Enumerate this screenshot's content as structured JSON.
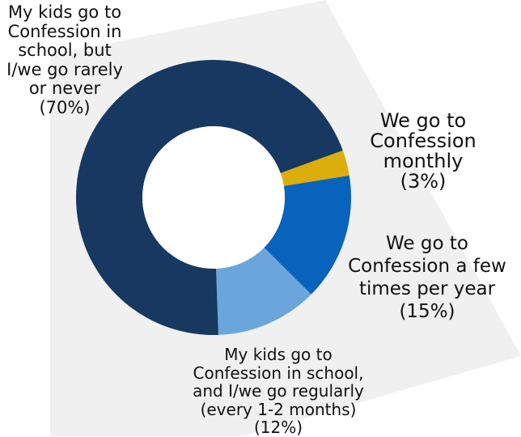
{
  "chart_data": {
    "type": "pie",
    "donut": true,
    "legend": "none",
    "slices": [
      {
        "label": "My kids go to Confession in school, but I/we go rarely or never (70%)",
        "label_lines": [
          "My kids go to",
          "Confession in",
          "school, but",
          "I/we go rarely",
          "or never",
          "(70%)"
        ],
        "value": 70,
        "color": "#173860"
      },
      {
        "label": "We go to Confession monthly (3%)",
        "label_lines": [
          "We go to",
          "Confession",
          "monthly",
          "(3%)"
        ],
        "value": 3,
        "color": "#dcae0c"
      },
      {
        "label": "We go to Confession a few times per year (15%)",
        "label_lines": [
          "We go to",
          "Confession a few",
          "times per year",
          "(15%)"
        ],
        "value": 15,
        "color": "#0863bd"
      },
      {
        "label": "My kids go to Confession in school, and I/we go regularly (every 1-2 months) (12%)",
        "label_lines": [
          "My kids go to",
          "Confession in school,",
          "and I/we go regularly",
          "(every 1-2 months)",
          "(12%)"
        ],
        "value": 12,
        "color": "#6aa6dc"
      }
    ],
    "colors": {
      "background_panel": "#f0f0f0",
      "hole": "#ffffff"
    }
  }
}
